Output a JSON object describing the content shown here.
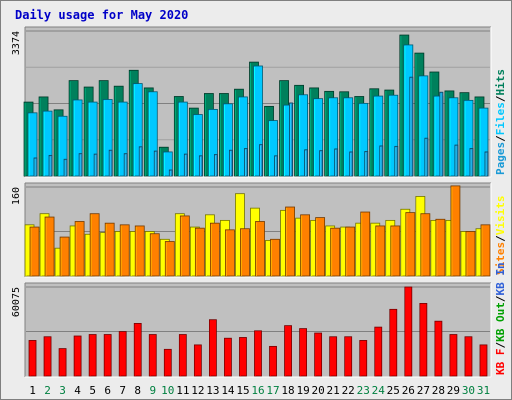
{
  "title": "Daily usage for May 2020",
  "colors": {
    "hits": "#00805c",
    "files": "#00c8ff",
    "pages": "#1a9ad6",
    "visits": "#ffff00",
    "sites": "#ff8000",
    "kbin": "#3060d8",
    "kbout": "#00a000",
    "kbf": "#ff0000",
    "weekday": "#000000",
    "weekend": "#008040",
    "sep": "#000000"
  },
  "chart_data": [
    {
      "type": "bar",
      "x": [
        1,
        2,
        3,
        4,
        5,
        6,
        7,
        8,
        9,
        10,
        11,
        12,
        13,
        14,
        15,
        16,
        17,
        18,
        19,
        20,
        21,
        22,
        23,
        24,
        25,
        26,
        27,
        28,
        29,
        30,
        31
      ],
      "ymax": 3374,
      "tick_labels": [
        "3374"
      ],
      "weekend_days": [
        2,
        3,
        9,
        10,
        16,
        17,
        23,
        24,
        30,
        31
      ],
      "series": [
        {
          "name": "Hits",
          "values": [
            1720,
            1840,
            1540,
            2220,
            2070,
            2220,
            2090,
            2460,
            2050,
            670,
            1850,
            1580,
            1920,
            1920,
            2020,
            2650,
            1620,
            2220,
            2110,
            2050,
            1970,
            1960,
            1850,
            2030,
            2000,
            3280,
            2860,
            2420,
            1980,
            1940,
            1840
          ]
        },
        {
          "name": "Files",
          "values": [
            1470,
            1510,
            1390,
            1770,
            1720,
            1780,
            1720,
            2150,
            1960,
            560,
            1720,
            1430,
            1550,
            1680,
            1840,
            2560,
            1290,
            1650,
            1890,
            1800,
            1820,
            1820,
            1690,
            1860,
            1880,
            3050,
            2330,
            1860,
            1820,
            1760,
            1580
          ]
        },
        {
          "name": "Pages",
          "values": [
            420,
            480,
            390,
            520,
            510,
            600,
            520,
            680,
            580,
            140,
            510,
            470,
            500,
            600,
            640,
            730,
            470,
            1700,
            610,
            590,
            630,
            560,
            570,
            700,
            690,
            2300,
            880,
            1950,
            720,
            640,
            560
          ]
        }
      ]
    },
    {
      "type": "bar",
      "x": [
        1,
        2,
        3,
        4,
        5,
        6,
        7,
        8,
        9,
        10,
        11,
        12,
        13,
        14,
        15,
        16,
        17,
        18,
        19,
        20,
        21,
        22,
        23,
        24,
        25,
        26,
        27,
        28,
        29,
        30,
        31
      ],
      "ymax": 160,
      "tick_labels": [
        "160"
      ],
      "series": [
        {
          "name": "Visits",
          "values": [
            92,
            112,
            50,
            90,
            75,
            78,
            80,
            80,
            80,
            66,
            112,
            88,
            110,
            100,
            148,
            122,
            64,
            118,
            104,
            100,
            90,
            88,
            95,
            95,
            100,
            120,
            143,
            100,
            100,
            80,
            85
          ]
        },
        {
          "name": "Sites",
          "values": [
            88,
            106,
            70,
            98,
            112,
            95,
            92,
            90,
            76,
            62,
            108,
            86,
            95,
            83,
            85,
            98,
            66,
            124,
            110,
            105,
            86,
            88,
            115,
            90,
            90,
            114,
            112,
            102,
            162,
            80,
            92
          ]
        }
      ]
    },
    {
      "type": "bar",
      "x": [
        1,
        2,
        3,
        4,
        5,
        6,
        7,
        8,
        9,
        10,
        11,
        12,
        13,
        14,
        15,
        16,
        17,
        18,
        19,
        20,
        21,
        22,
        23,
        24,
        25,
        26,
        27,
        28,
        29,
        30,
        31
      ],
      "ymax": 60075,
      "tick_labels": [
        "60075"
      ],
      "series": [
        {
          "name": "KB F",
          "values": [
            24000,
            26500,
            18500,
            27000,
            28000,
            28000,
            30000,
            35500,
            28000,
            18000,
            28000,
            21000,
            38000,
            25500,
            26000,
            30500,
            20000,
            34000,
            32000,
            29000,
            26500,
            26500,
            24000,
            33000,
            45000,
            60075,
            49000,
            37000,
            28000,
            26500,
            21000
          ]
        }
      ]
    }
  ],
  "legends": {
    "top": [
      "Pages",
      "Files",
      "Hits"
    ],
    "mid": [
      "Sites",
      "Visits"
    ],
    "bottom": [
      "KB F",
      "KB Out",
      "KB In"
    ],
    "sep": "/"
  }
}
